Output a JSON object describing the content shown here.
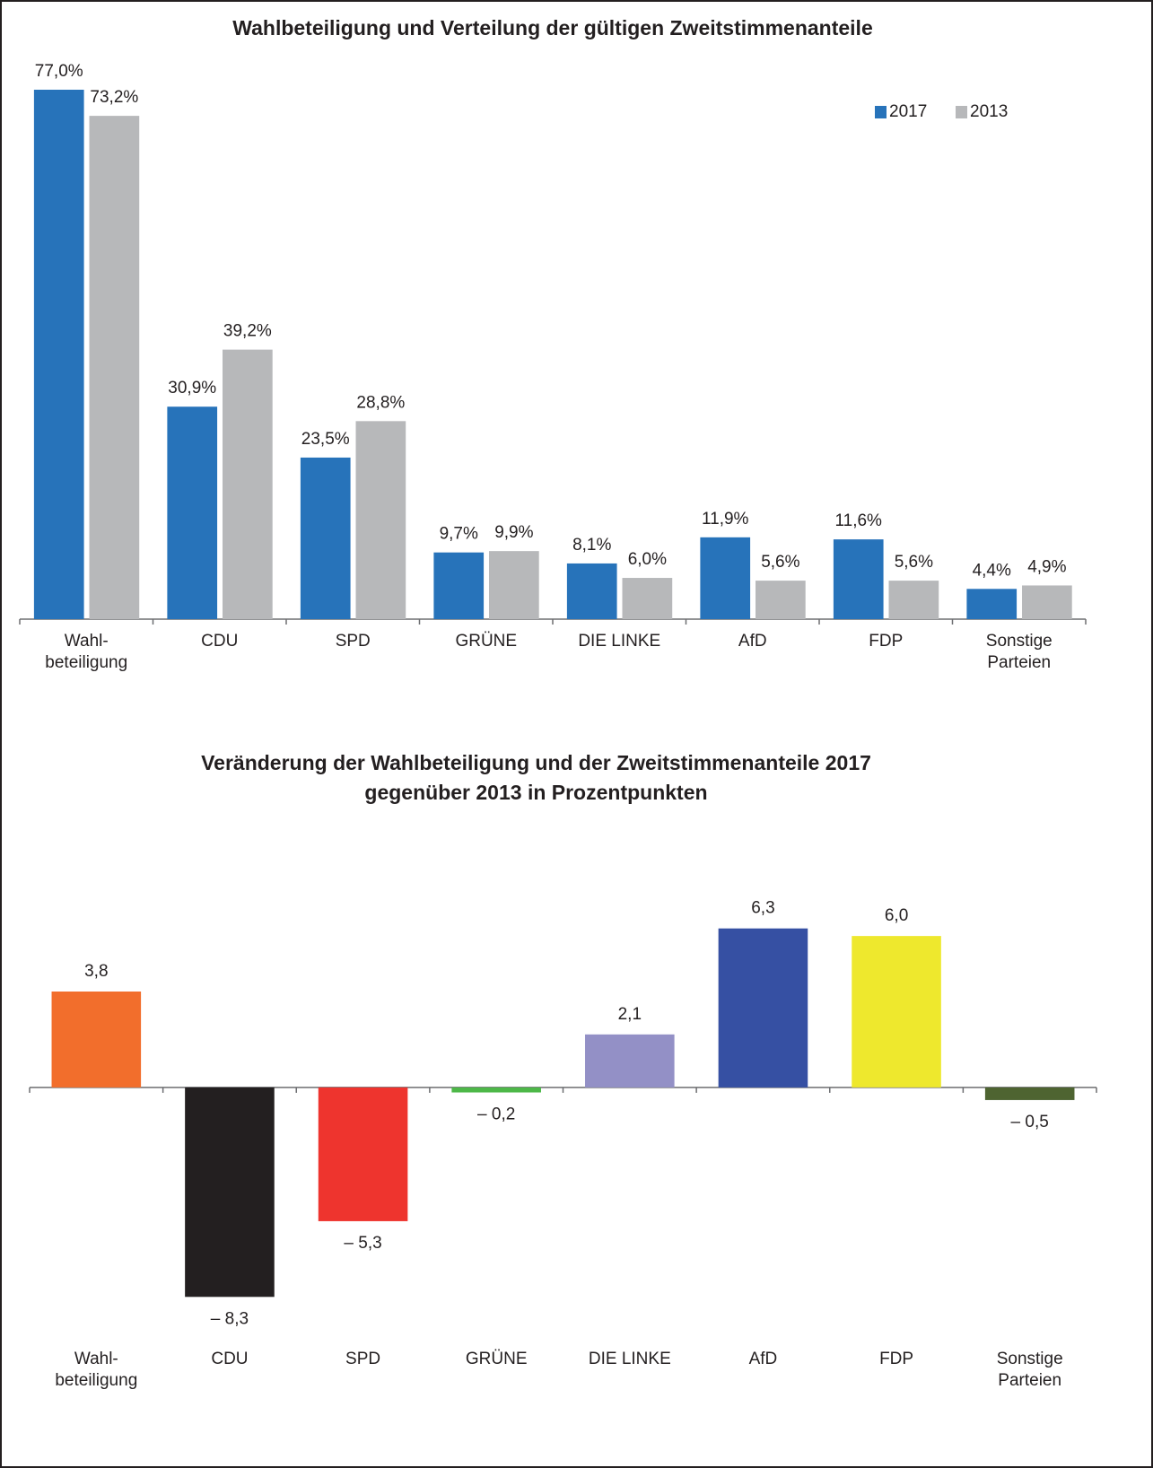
{
  "chart_data": [
    {
      "type": "bar",
      "title": "Wahlbeteiligung und Verteilung der gültigen Zweitstimmenanteile",
      "categories": [
        "Wahl-\nbeteiligung",
        "CDU",
        "SPD",
        "GRÜNE",
        "DIE LINKE",
        "AfD",
        "FDP",
        "Sonstige\nParteien"
      ],
      "series": [
        {
          "name": "2017",
          "color": "#2773ba",
          "values": [
            77.0,
            30.9,
            23.5,
            9.7,
            8.1,
            11.9,
            11.6,
            4.4
          ],
          "value_labels": [
            "77,0%",
            "30,9%",
            "23,5%",
            "9,7%",
            "8,1%",
            "11,9%",
            "11,6%",
            "4,4%"
          ]
        },
        {
          "name": "2013",
          "color": "#b7b8ba",
          "values": [
            73.2,
            39.2,
            28.8,
            9.9,
            6.0,
            5.6,
            5.6,
            4.9
          ],
          "value_labels": [
            "73,2%",
            "39,2%",
            "28,8%",
            "9,9%",
            "6,0%",
            "5,6%",
            "5,6%",
            "4,9%"
          ]
        }
      ],
      "ylim": [
        0,
        80
      ],
      "legend": "upper right"
    },
    {
      "type": "bar",
      "title": "Veränderung der Wahlbeteiligung und der Zweitstimmenanteile 2017\ngegenüber 2013 in Prozentpunkten",
      "categories": [
        "Wahl-\nbeteiligung",
        "CDU",
        "SPD",
        "GRÜNE",
        "DIE LINKE",
        "AfD",
        "FDP",
        "Sonstige\nParteien"
      ],
      "values": [
        3.8,
        -8.3,
        -5.3,
        -0.2,
        2.1,
        6.3,
        6.0,
        -0.5
      ],
      "value_labels": [
        "3,8",
        "– 8,3",
        "– 5,3",
        "– 0,2",
        "2,1",
        "6,3",
        "6,0",
        "– 0,5"
      ],
      "colors": [
        "#f26e2c",
        "#231f20",
        "#ee342e",
        "#4db848",
        "#9390c6",
        "#3650a3",
        "#eee82d",
        "#4e6431"
      ],
      "ylim": [
        -9,
        7
      ]
    }
  ]
}
